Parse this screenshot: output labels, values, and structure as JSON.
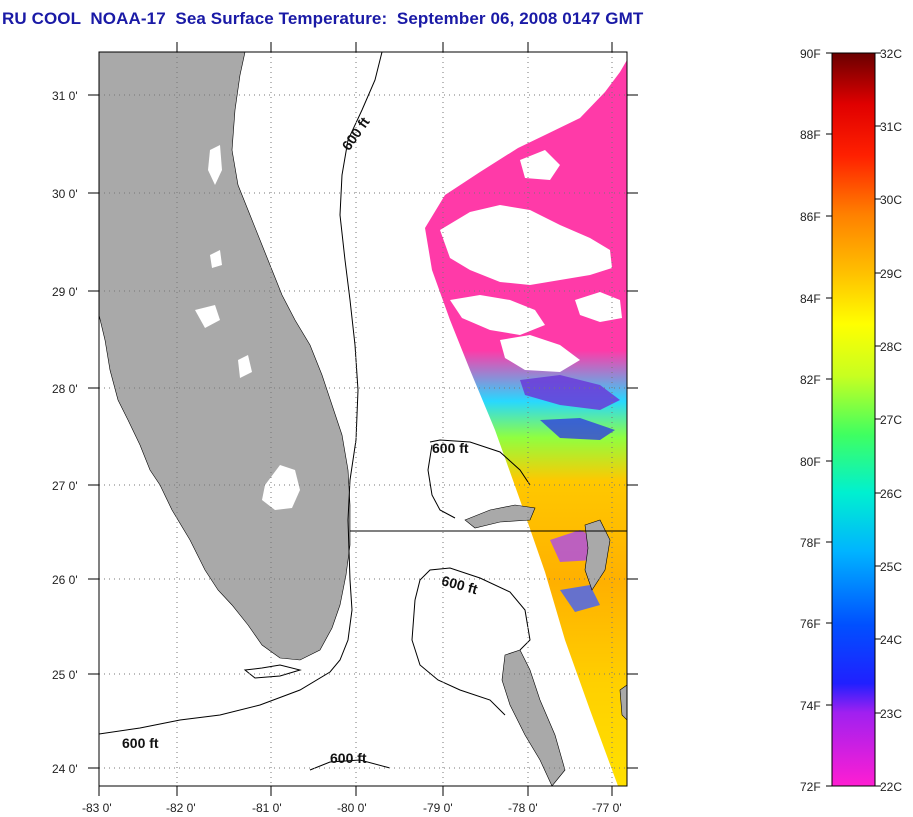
{
  "title": "RU COOL  NOAA-17  Sea Surface Temperature:  September 06, 2008 0147 GMT",
  "map": {
    "lat_labels": [
      "31 0'",
      "30 0'",
      "29 0'",
      "28 0'",
      "27 0'",
      "26 0'",
      "25 0'",
      "24 0'"
    ],
    "lon_labels": [
      "-83 0'",
      "-82 0'",
      "-81 0'",
      "-80 0'",
      "-79 0'",
      "-78 0'",
      "-77 0'"
    ],
    "contour_labels": [
      "600 ft",
      "600 ft",
      "600 ft",
      "600 ft",
      "600 ft"
    ],
    "land_color": "#a9a9a9",
    "cloud_color": "#ffffff"
  },
  "colorbar": {
    "f_labels": [
      "90F",
      "88F",
      "86F",
      "84F",
      "82F",
      "80F",
      "78F",
      "76F",
      "74F",
      "72F"
    ],
    "c_labels": [
      "32C",
      "31C",
      "30C",
      "29C",
      "28C",
      "27C",
      "26C",
      "25C",
      "24C",
      "23C",
      "22C"
    ],
    "colors": [
      "#ff00ff",
      "#8a2be2",
      "#0000ff",
      "#00bfff",
      "#00ff80",
      "#ffff00",
      "#ff8c00",
      "#ff0000",
      "#8b0000"
    ]
  }
}
